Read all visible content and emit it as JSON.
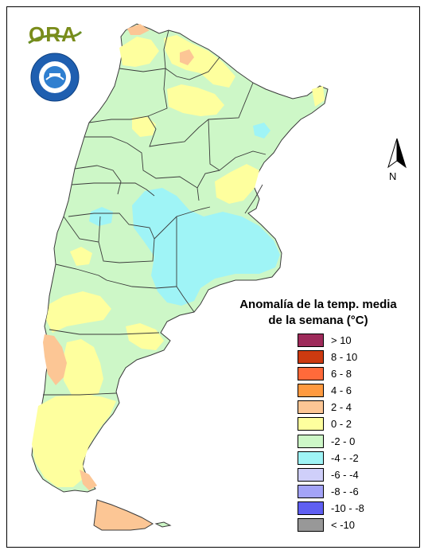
{
  "logo": {
    "text": "ORA",
    "seal_text": "SERVICIO METEOROLOGICO NACIONAL · ARGENTINA"
  },
  "north_arrow": {
    "label": "N"
  },
  "legend": {
    "title_line1": "Anomalía de la temp. media",
    "title_line2": "de la semana (°C)",
    "items": [
      {
        "label": "> 10",
        "color": "#9e2a5a"
      },
      {
        "label": "8 - 10",
        "color": "#cc3a10"
      },
      {
        "label": "6 - 8",
        "color": "#ff6a3a"
      },
      {
        "label": "4 - 6",
        "color": "#ff9a40"
      },
      {
        "label": "2 - 4",
        "color": "#fcc695"
      },
      {
        "label": "0 - 2",
        "color": "#feff9e"
      },
      {
        "label": "-2 - 0",
        "color": "#cdf7c7"
      },
      {
        "label": "-4 - -2",
        "color": "#9ff4f6"
      },
      {
        "label": "-6 - -4",
        "color": "#cfcffa"
      },
      {
        "label": "-8 - -6",
        "color": "#a3a3f8"
      },
      {
        "label": "-10 - -8",
        "color": "#5f5ff2"
      },
      {
        "label": "< -10",
        "color": "#989898"
      }
    ]
  },
  "map_colors": {
    "cold": "#9ff4f6",
    "neutral": "#cdf7c7",
    "warm": "#feff9e",
    "hot": "#fcc695",
    "border": "#3a3a3a"
  }
}
